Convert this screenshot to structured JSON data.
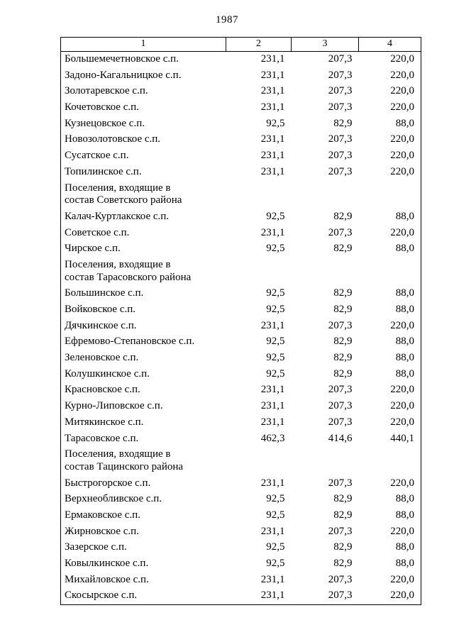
{
  "page": {
    "number": "1987"
  },
  "table": {
    "headers": [
      "1",
      "2",
      "3",
      "4"
    ],
    "rows": [
      {
        "type": "data",
        "name": "Большемечетновское с.п.",
        "values": [
          "231,1",
          "207,3",
          "220,0"
        ]
      },
      {
        "type": "data",
        "name": "Задоно-Кагальницкое с.п.",
        "values": [
          "231,1",
          "207,3",
          "220,0"
        ]
      },
      {
        "type": "data",
        "name": "Золотаревское с.п.",
        "values": [
          "231,1",
          "207,3",
          "220,0"
        ]
      },
      {
        "type": "data",
        "name": "Кочетовское с.п.",
        "values": [
          "231,1",
          "207,3",
          "220,0"
        ]
      },
      {
        "type": "data",
        "name": "Кузнецовское с.п.",
        "values": [
          "92,5",
          "82,9",
          "88,0"
        ]
      },
      {
        "type": "data",
        "name": "Новозолотовское с.п.",
        "values": [
          "231,1",
          "207,3",
          "220,0"
        ]
      },
      {
        "type": "data",
        "name": "Сусатское с.п.",
        "values": [
          "231,1",
          "207,3",
          "220,0"
        ]
      },
      {
        "type": "data",
        "name": "Топилинское с.п.",
        "values": [
          "231,1",
          "207,3",
          "220,0"
        ]
      },
      {
        "type": "section",
        "name": "Поселения, входящие в состав Советского района",
        "values": []
      },
      {
        "type": "data",
        "name": "Калач-Куртлакское с.п.",
        "values": [
          "92,5",
          "82,9",
          "88,0"
        ]
      },
      {
        "type": "data",
        "name": "Советское с.п.",
        "values": [
          "231,1",
          "207,3",
          "220,0"
        ]
      },
      {
        "type": "data",
        "name": "Чирское с.п.",
        "values": [
          "92,5",
          "82,9",
          "88,0"
        ]
      },
      {
        "type": "section",
        "name": "Поселения, входящие в состав Тарасовского района",
        "values": []
      },
      {
        "type": "data",
        "name": "Большинское с.п.",
        "values": [
          "92,5",
          "82,9",
          "88,0"
        ]
      },
      {
        "type": "data",
        "name": "Войковское с.п.",
        "values": [
          "92,5",
          "82,9",
          "88,0"
        ]
      },
      {
        "type": "data",
        "name": "Дячкинское с.п.",
        "values": [
          "231,1",
          "207,3",
          "220,0"
        ]
      },
      {
        "type": "data",
        "name": "Ефремово-Степановское с.п.",
        "values": [
          "92,5",
          "82,9",
          "88,0"
        ]
      },
      {
        "type": "data",
        "name": "Зеленовское с.п.",
        "values": [
          "92,5",
          "82,9",
          "88,0"
        ]
      },
      {
        "type": "data",
        "name": "Колушкинское с.п.",
        "values": [
          "92,5",
          "82,9",
          "88,0"
        ]
      },
      {
        "type": "data",
        "name": "Красновское с.п.",
        "values": [
          "231,1",
          "207,3",
          "220,0"
        ]
      },
      {
        "type": "data",
        "name": "Курно-Липовское с.п.",
        "values": [
          "231,1",
          "207,3",
          "220,0"
        ]
      },
      {
        "type": "data",
        "name": "Митякинское с.п.",
        "values": [
          "231,1",
          "207,3",
          "220,0"
        ]
      },
      {
        "type": "data",
        "name": "Тарасовское с.п.",
        "values": [
          "462,3",
          "414,6",
          "440,1"
        ]
      },
      {
        "type": "section",
        "name": "Поселения, входящие в состав Тацинского района",
        "values": []
      },
      {
        "type": "data",
        "name": "Быстрогорское с.п.",
        "values": [
          "231,1",
          "207,3",
          "220,0"
        ]
      },
      {
        "type": "data",
        "name": "Верхнеобливское с.п.",
        "values": [
          "92,5",
          "82,9",
          "88,0"
        ]
      },
      {
        "type": "data",
        "name": "Ермаковское с.п.",
        "values": [
          "92,5",
          "82,9",
          "88,0"
        ]
      },
      {
        "type": "data",
        "name": "Жирновское с.п.",
        "values": [
          "231,1",
          "207,3",
          "220,0"
        ]
      },
      {
        "type": "data",
        "name": "Зазерское с.п.",
        "values": [
          "92,5",
          "82,9",
          "88,0"
        ]
      },
      {
        "type": "data",
        "name": "Ковылкинское с.п.",
        "values": [
          "92,5",
          "82,9",
          "88,0"
        ]
      },
      {
        "type": "data",
        "name": "Михайловское с.п.",
        "values": [
          "231,1",
          "207,3",
          "220,0"
        ]
      },
      {
        "type": "data",
        "name": "Скосырское с.п.",
        "values": [
          "231,1",
          "207,3",
          "220,0"
        ]
      }
    ]
  }
}
